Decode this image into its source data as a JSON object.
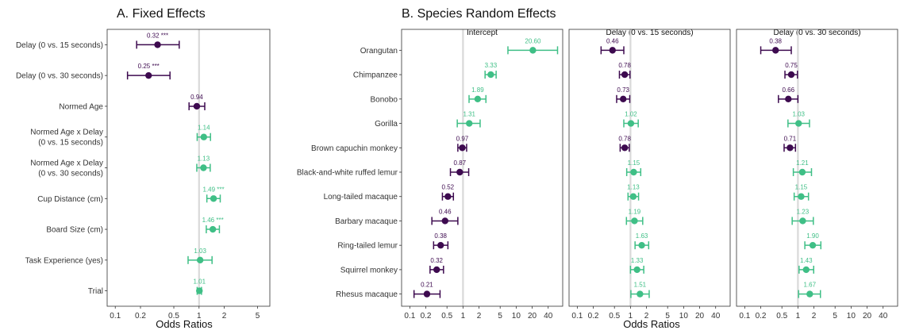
{
  "colors": {
    "below_one": "#3d0a4f",
    "above_one": "#3fbf86",
    "refline": "#d9d9d9",
    "frame": "#333333"
  },
  "chart_data": [
    {
      "type": "forest",
      "title": "A. Fixed Effects",
      "xlabel": "Odds Ratios",
      "xscale": "log",
      "xlim": [
        0.08,
        7
      ],
      "xticks": [
        0.1,
        0.2,
        0.5,
        1,
        2,
        5
      ],
      "xtick_labels": [
        "0.1",
        "0.2",
        "0.5",
        "1",
        "2",
        "5"
      ],
      "reference_line": 1,
      "rows": [
        {
          "label_lines": [
            "Delay (0 vs. 15 seconds)"
          ],
          "estimate": 0.32,
          "lower": 0.18,
          "upper": 0.58,
          "label": "0.32",
          "sig": "***"
        },
        {
          "label_lines": [
            "Delay (0 vs. 30 seconds)"
          ],
          "estimate": 0.25,
          "lower": 0.14,
          "upper": 0.45,
          "label": "0.25",
          "sig": "***"
        },
        {
          "label_lines": [
            "Normed Age"
          ],
          "estimate": 0.94,
          "lower": 0.76,
          "upper": 1.17,
          "label": "0.94",
          "sig": ""
        },
        {
          "label_lines": [
            "Normed Age x Delay",
            "(0 vs. 15 seconds)"
          ],
          "estimate": 1.14,
          "lower": 0.95,
          "upper": 1.37,
          "label": "1.14",
          "sig": ""
        },
        {
          "label_lines": [
            "Normed Age x Delay",
            "(0 vs. 30 seconds)"
          ],
          "estimate": 1.13,
          "lower": 0.94,
          "upper": 1.36,
          "label": "1.13",
          "sig": ""
        },
        {
          "label_lines": [
            "Cup Distance (cm)"
          ],
          "estimate": 1.49,
          "lower": 1.24,
          "upper": 1.79,
          "label": "1.49",
          "sig": "***"
        },
        {
          "label_lines": [
            "Board Size (cm)"
          ],
          "estimate": 1.46,
          "lower": 1.22,
          "upper": 1.75,
          "label": "1.46",
          "sig": "***"
        },
        {
          "label_lines": [
            "Task Experience (yes)"
          ],
          "estimate": 1.03,
          "lower": 0.74,
          "upper": 1.43,
          "label": "1.03",
          "sig": ""
        },
        {
          "label_lines": [
            "Trial"
          ],
          "estimate": 1.01,
          "lower": 0.95,
          "upper": 1.07,
          "label": "1.01",
          "sig": ""
        }
      ]
    },
    {
      "type": "forest",
      "title": "B. Species Random Effects",
      "xlabel": "Odds Ratios",
      "xscale": "log",
      "xlim": [
        0.07,
        75
      ],
      "xticks": [
        0.1,
        0.2,
        0.5,
        1,
        2,
        5,
        10,
        20,
        40
      ],
      "xtick_labels": [
        "0.1",
        "0.2",
        "0.5",
        "1",
        "2",
        "5",
        "10",
        "20",
        "40"
      ],
      "reference_line": 1,
      "categories": [
        "Orangutan",
        "Chimpanzee",
        "Bonobo",
        "Gorilla",
        "Brown capuchin monkey",
        "Black-and-white ruffed lemur",
        "Long-tailed macaque",
        "Barbary macaque",
        "Ring-tailed lemur",
        "Squirrel monkey",
        "Rhesus macaque"
      ],
      "facets": [
        {
          "name": "Intercept",
          "estimates": [
            20.6,
            3.33,
            1.89,
            1.31,
            0.97,
            0.87,
            0.52,
            0.46,
            0.38,
            0.32,
            0.21
          ],
          "lower": [
            7.0,
            2.6,
            1.3,
            0.78,
            0.8,
            0.58,
            0.41,
            0.26,
            0.28,
            0.24,
            0.12
          ],
          "upper": [
            60.0,
            4.2,
            2.7,
            2.1,
            1.17,
            1.28,
            0.66,
            0.8,
            0.52,
            0.43,
            0.37
          ],
          "labels": [
            "20.60",
            "3.33",
            "1.89",
            "1.31",
            "0.97",
            "0.87",
            "0.52",
            "0.46",
            "0.38",
            "0.32",
            "0.21"
          ]
        },
        {
          "name": "Delay (0 vs. 15 seconds)",
          "estimates": [
            0.46,
            0.78,
            0.73,
            1.02,
            0.78,
            1.15,
            1.13,
            1.19,
            1.63,
            1.33,
            1.51
          ],
          "lower": [
            0.28,
            0.62,
            0.55,
            0.75,
            0.64,
            0.85,
            0.9,
            0.84,
            1.22,
            1.0,
            1.02
          ],
          "upper": [
            0.75,
            0.98,
            0.97,
            1.4,
            0.95,
            1.56,
            1.42,
            1.7,
            2.2,
            1.78,
            2.25
          ],
          "labels": [
            "0.46",
            "0.78",
            "0.73",
            "1.02",
            "0.78",
            "1.15",
            "1.13",
            "1.19",
            "1.63",
            "1.33",
            "1.51"
          ]
        },
        {
          "name": "Delay (0 vs. 30 seconds)",
          "estimates": [
            0.38,
            0.75,
            0.66,
            1.03,
            0.71,
            1.21,
            1.15,
            1.23,
            1.9,
            1.43,
            1.67
          ],
          "lower": [
            0.2,
            0.57,
            0.43,
            0.65,
            0.55,
            0.82,
            0.85,
            0.78,
            1.35,
            1.05,
            1.03
          ],
          "upper": [
            0.75,
            0.98,
            1.0,
            1.65,
            0.9,
            1.8,
            1.58,
            1.95,
            2.7,
            1.98,
            2.65
          ],
          "labels": [
            "0.38",
            "0.75",
            "0.66",
            "1.03",
            "0.71",
            "1.21",
            "1.15",
            "1.23",
            "1.90",
            "1.43",
            "1.67"
          ]
        }
      ]
    }
  ]
}
